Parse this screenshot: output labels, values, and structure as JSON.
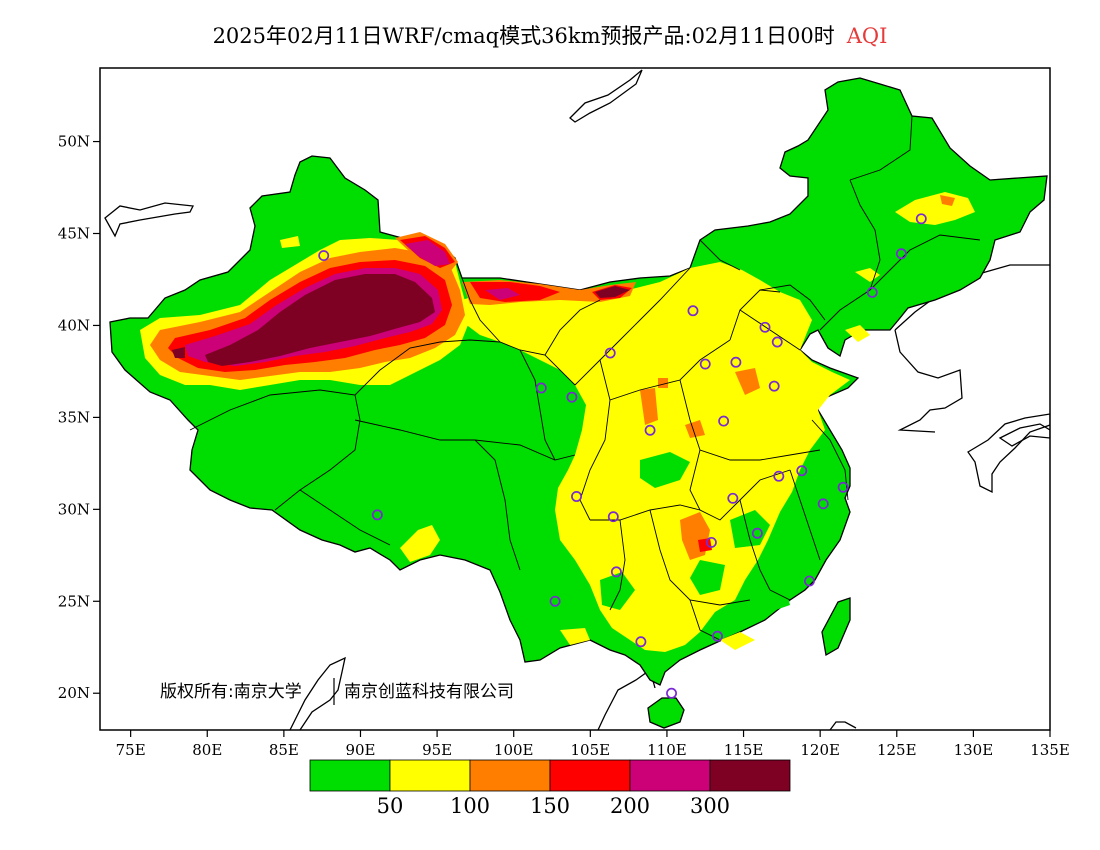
{
  "header": {
    "title": "2025年02月11日WRF/cmaq模式36km预报产品:02月11日00时",
    "variable": "AQI"
  },
  "map": {
    "lon_range": [
      73,
      135
    ],
    "lat_range": [
      18,
      54
    ],
    "lon_ticks": [
      75,
      80,
      85,
      90,
      95,
      100,
      105,
      110,
      115,
      120,
      125,
      130,
      135
    ],
    "lon_tick_labels": [
      "75E",
      "80E",
      "85E",
      "90E",
      "95E",
      "100E",
      "105E",
      "110E",
      "115E",
      "120E",
      "125E",
      "130E",
      "135E"
    ],
    "lat_ticks": [
      20,
      25,
      30,
      35,
      40,
      45,
      50
    ],
    "lat_tick_labels": [
      "20N",
      "25N",
      "30N",
      "35N",
      "40N",
      "45N",
      "50N"
    ],
    "copyright": "版权所有:南京大学",
    "copyright2": "南京创蓝科技有限公司"
  },
  "legend": {
    "colors": [
      "#00dd00",
      "#ffff00",
      "#ff7e00",
      "#ff0000",
      "#cc0077",
      "#7e0023"
    ],
    "thresholds": [
      "50",
      "100",
      "150",
      "200",
      "300"
    ]
  },
  "stations": [
    [
      87.6,
      43.8
    ],
    [
      91.1,
      29.7
    ],
    [
      101.8,
      36.6
    ],
    [
      103.8,
      36.1
    ],
    [
      106.3,
      38.5
    ],
    [
      111.7,
      40.8
    ],
    [
      112.5,
      37.9
    ],
    [
      114.5,
      38.0
    ],
    [
      116.4,
      39.9
    ],
    [
      117.2,
      39.1
    ],
    [
      117.0,
      36.7
    ],
    [
      113.7,
      34.8
    ],
    [
      108.9,
      34.3
    ],
    [
      104.1,
      30.7
    ],
    [
      106.5,
      29.6
    ],
    [
      114.3,
      30.6
    ],
    [
      112.9,
      28.2
    ],
    [
      115.9,
      28.7
    ],
    [
      117.3,
      31.8
    ],
    [
      118.8,
      32.1
    ],
    [
      120.2,
      30.3
    ],
    [
      121.5,
      31.2
    ],
    [
      119.3,
      26.1
    ],
    [
      113.3,
      23.1
    ],
    [
      108.3,
      22.8
    ],
    [
      110.3,
      20.0
    ],
    [
      106.7,
      26.6
    ],
    [
      102.7,
      25.0
    ],
    [
      123.4,
      41.8
    ],
    [
      125.3,
      43.9
    ],
    [
      126.6,
      45.8
    ]
  ]
}
